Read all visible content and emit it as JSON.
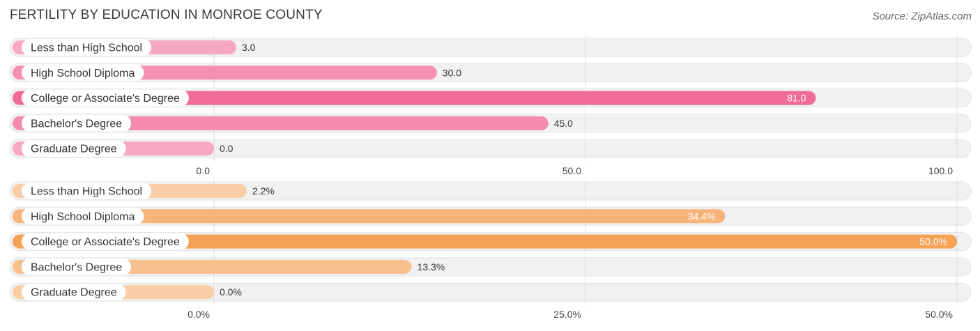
{
  "header": {
    "title": "FERTILITY BY EDUCATION IN MONROE COUNTY",
    "source": "Source: ZipAtlas.com"
  },
  "chart_data": [
    {
      "type": "bar",
      "orientation": "horizontal",
      "categories": [
        "Less than High School",
        "High School Diploma",
        "College or Associate's Degree",
        "Bachelor's Degree",
        "Graduate Degree"
      ],
      "values": [
        3.0,
        30.0,
        81.0,
        45.0,
        0.0
      ],
      "value_labels": [
        "3.0",
        "30.0",
        "81.0",
        "45.0",
        "0.0"
      ],
      "xlim": [
        0,
        100
      ],
      "ticks": [
        0,
        50,
        100
      ],
      "tick_labels": [
        "0.0",
        "50.0",
        "100.0"
      ],
      "grid": true,
      "colors": [
        "#f7a8c4",
        "#f590b4",
        "#f06a9a",
        "#f38bb0",
        "#f7a8c4"
      ],
      "track_color": "#eeeeee"
    },
    {
      "type": "bar",
      "orientation": "horizontal",
      "categories": [
        "Less than High School",
        "High School Diploma",
        "College or Associate's Degree",
        "Bachelor's Degree",
        "Graduate Degree"
      ],
      "values": [
        2.2,
        34.4,
        50.0,
        13.3,
        0.0
      ],
      "value_labels": [
        "2.2%",
        "34.4%",
        "50.0%",
        "13.3%",
        "0.0%"
      ],
      "xlim": [
        0,
        50
      ],
      "ticks": [
        0,
        25,
        50
      ],
      "tick_labels": [
        "0.0%",
        "25.0%",
        "50.0%"
      ],
      "grid": true,
      "colors": [
        "#f9cda6",
        "#f7b47a",
        "#f5a155",
        "#f8c08f",
        "#f9cda6"
      ],
      "track_color": "#eeeeee"
    }
  ]
}
